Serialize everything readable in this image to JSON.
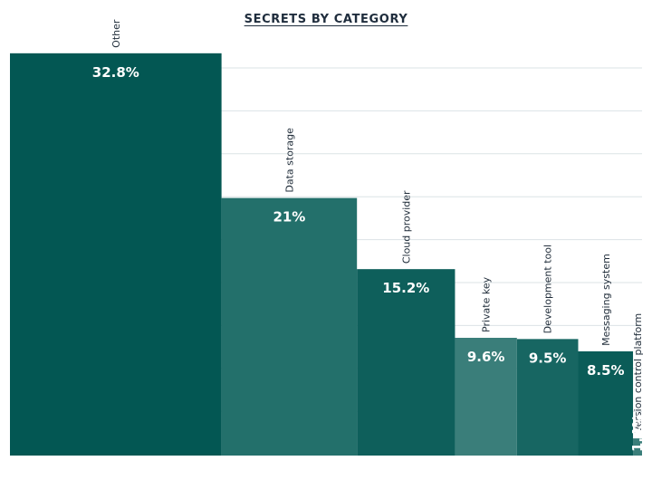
{
  "chart_data": {
    "type": "bar",
    "title": "SECRETS BY CATEGORY",
    "categories": [
      "Other",
      "Data storage",
      "Cloud provider",
      "Private key",
      "Development tool",
      "Messaging system",
      "Version control platform"
    ],
    "values": [
      32.8,
      21,
      15.2,
      9.6,
      9.5,
      8.5,
      1.4
    ],
    "value_labels": [
      "32.8%",
      "21%",
      "15.2%",
      "9.6%",
      "9.5%",
      "8.5%",
      "1.4%"
    ],
    "bar_widths_relative": [
      32.8,
      21,
      15.2,
      9.6,
      9.5,
      8.5,
      1.4
    ],
    "colors": [
      "#035753",
      "#23706B",
      "#0E5F5B",
      "#3A7E7A",
      "#176662",
      "#0B5C58",
      "#3A7E7A"
    ],
    "grid": true,
    "ylim": [
      0,
      33.6
    ],
    "xlabel": "",
    "ylabel": ""
  }
}
